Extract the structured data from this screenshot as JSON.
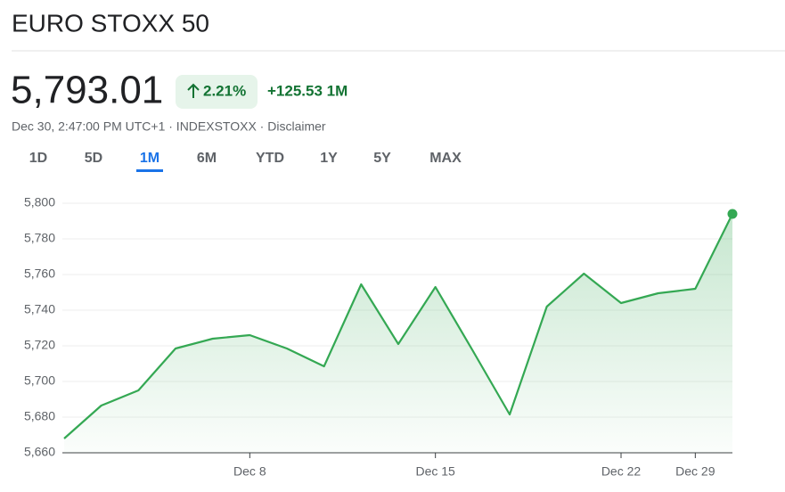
{
  "header": {
    "title": "EURO STOXX 50"
  },
  "quote": {
    "price": "5,793.01",
    "change_percent": "2.21%",
    "change": "+125.53 1M",
    "details": "Dec 30, 2:47:00 PM UTC+1 · INDEXSTOXX · Disclaimer"
  },
  "tabs": [
    "1D",
    "5D",
    "1M",
    "6M",
    "YTD",
    "1Y",
    "5Y",
    "MAX"
  ],
  "selected_tab": 2,
  "chart_data": {
    "type": "line",
    "categories": [
      null,
      null,
      null,
      null,
      null,
      "Dec 8",
      null,
      null,
      null,
      null,
      "Dec 15",
      null,
      null,
      null,
      null,
      "Dec 22",
      null,
      "Dec 29",
      null
    ],
    "values": [
      5668,
      5686.5,
      5695,
      5718.5,
      5724,
      5726,
      5718.5,
      5708.5,
      5754.5,
      5721,
      5753,
      5717.5,
      5681.5,
      5742,
      5760.5,
      5744,
      5749.5,
      5752,
      5794
    ],
    "color": "#34a853",
    "ylim": [
      5660,
      5808
    ],
    "yticks": [
      {
        "value": 5660,
        "label": "5,660"
      },
      {
        "value": 5680,
        "label": "5,680"
      },
      {
        "value": 5700,
        "label": "5,700"
      },
      {
        "value": 5720,
        "label": "5,720"
      },
      {
        "value": 5740,
        "label": "5,740"
      },
      {
        "value": 5760,
        "label": "5,760"
      },
      {
        "value": 5780,
        "label": "5,780"
      },
      {
        "value": 5800,
        "label": "5,800"
      }
    ],
    "grid": true
  }
}
